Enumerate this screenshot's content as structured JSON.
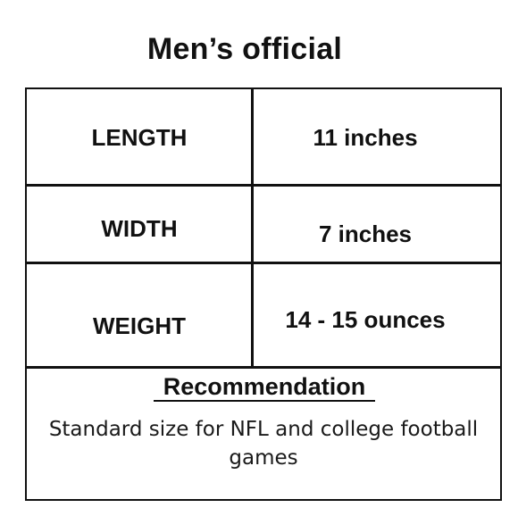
{
  "title": "Men’s official",
  "rows": [
    {
      "label": "LENGTH",
      "value": "11 inches"
    },
    {
      "label": "WIDTH",
      "value": "7 inches"
    },
    {
      "label": "WEIGHT",
      "value": "14 - 15 ounces"
    }
  ],
  "recommendation": {
    "heading": "Recommendation",
    "text": "Standard size for NFL and college football games"
  },
  "colors": {
    "text": "#111111",
    "background": "#ffffff",
    "border": "#111111"
  }
}
